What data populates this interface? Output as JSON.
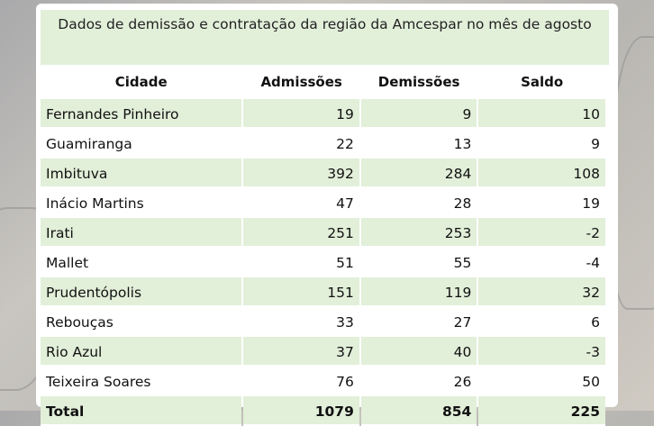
{
  "title": "Dados de demissão e contratação da região da Amcespar no mês de agosto",
  "colors": {
    "stripe": "#e2efd9",
    "card": "#ffffff"
  },
  "headers": [
    "Cidade",
    "Admissões",
    "Demissões",
    "Saldo"
  ],
  "rows": [
    [
      "Fernandes Pinheiro",
      "19",
      "9",
      "10"
    ],
    [
      "Guamiranga",
      "22",
      "13",
      "9"
    ],
    [
      "Imbituva",
      "392",
      "284",
      "108"
    ],
    [
      "Inácio Martins",
      "47",
      "28",
      "19"
    ],
    [
      "Irati",
      "251",
      "253",
      "-2"
    ],
    [
      "Mallet",
      "51",
      "55",
      "-4"
    ],
    [
      "Prudentópolis",
      "151",
      "119",
      "32"
    ],
    [
      "Rebouças",
      "33",
      "27",
      "6"
    ],
    [
      "Rio Azul",
      "37",
      "40",
      "-3"
    ],
    [
      "Teixeira Soares",
      "76",
      "26",
      "50"
    ]
  ],
  "total": [
    "Total",
    "1079",
    "854",
    "225"
  ]
}
